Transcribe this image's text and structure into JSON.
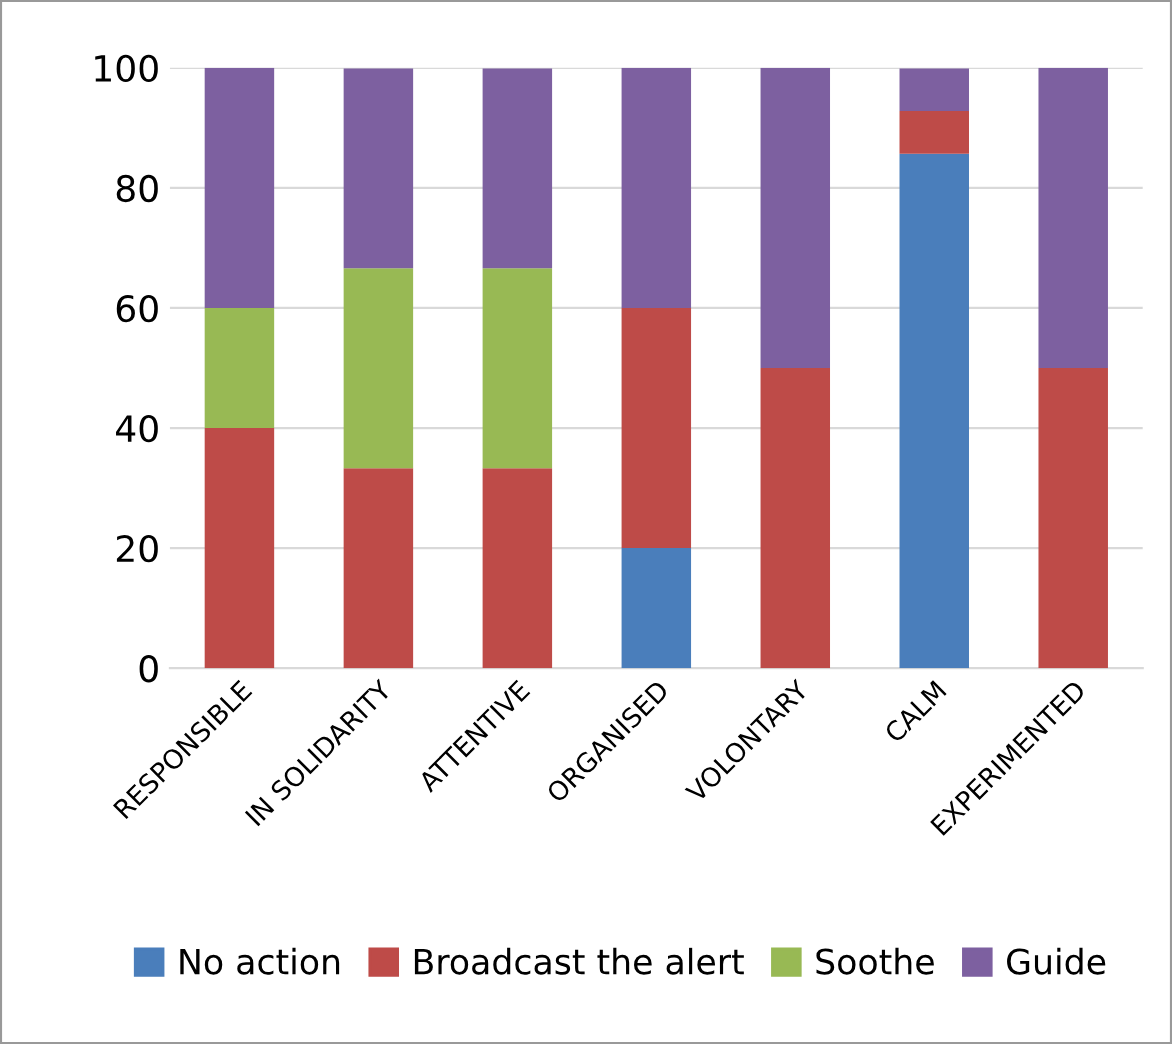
{
  "chart_data": {
    "type": "bar",
    "stacked": true,
    "categories": [
      "RESPONSIBLE",
      "IN SOLIDARITY",
      "ATTENTIVE",
      "ORGANISED",
      "VOLONTARY",
      "CALM",
      "EXPERIMENTED"
    ],
    "series": [
      {
        "name": "No action",
        "color": "#4a7ebb",
        "values": [
          0,
          0,
          0,
          20,
          0,
          85.7,
          0
        ]
      },
      {
        "name": "Broadcast the alert",
        "color": "#be4b48",
        "values": [
          40,
          33.3,
          33.3,
          40,
          50,
          7.1,
          50
        ]
      },
      {
        "name": "Soothe",
        "color": "#98b954",
        "values": [
          20,
          33.3,
          33.3,
          0,
          0,
          0,
          0
        ]
      },
      {
        "name": "Guide",
        "color": "#7d60a0",
        "values": [
          40,
          33.3,
          33.3,
          40,
          50,
          7.1,
          50
        ]
      }
    ],
    "ylim": [
      0,
      100
    ],
    "yticks": [
      0,
      20,
      40,
      60,
      80,
      100
    ],
    "grid": "y",
    "legend": "bottom"
  }
}
